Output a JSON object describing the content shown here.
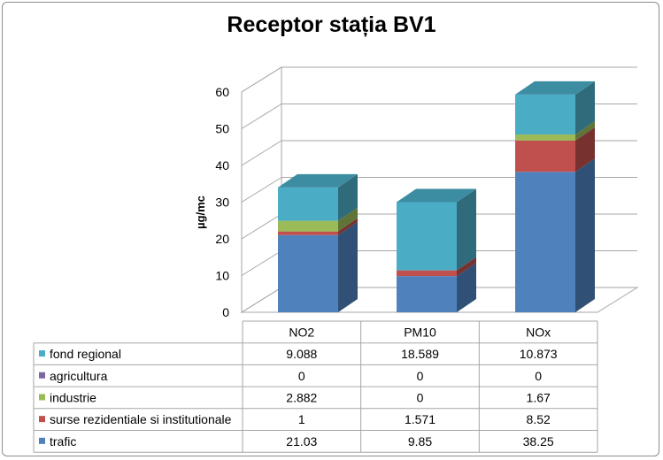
{
  "chart_data": {
    "type": "bar",
    "stacked": true,
    "three_d": true,
    "title": "Receptor stația BV1",
    "xlabel": "",
    "ylabel": "µg/mc",
    "ylim": [
      0,
      60
    ],
    "yticks": [
      "0",
      "10",
      "20",
      "30",
      "40",
      "50",
      "60"
    ],
    "grid": true,
    "legend": "data-table-left",
    "categories": [
      "NO2",
      "PM10",
      "NOx"
    ],
    "series": [
      {
        "name": "trafic",
        "values": [
          21.03,
          9.85,
          38.25
        ],
        "labels": [
          "21.03",
          "9.85",
          "38.25"
        ],
        "color": "#4f81bd"
      },
      {
        "name": "surse rezidentiale si institutionale",
        "values": [
          1,
          1.571,
          8.52
        ],
        "labels": [
          "1",
          "1.571",
          "8.52"
        ],
        "color": "#c0504d"
      },
      {
        "name": "industrie",
        "values": [
          2.882,
          0,
          1.67
        ],
        "labels": [
          "2.882",
          "0",
          "1.67"
        ],
        "color": "#9bbb59"
      },
      {
        "name": "agricultura",
        "values": [
          0,
          0,
          0
        ],
        "labels": [
          "0",
          "0",
          "0"
        ],
        "color": "#8064a2"
      },
      {
        "name": "fond regional",
        "values": [
          9.088,
          18.589,
          10.873
        ],
        "labels": [
          "9.088",
          "18.589",
          "10.873"
        ],
        "color": "#4bacc6"
      }
    ],
    "table_rows_order": [
      "fond regional",
      "agricultura",
      "industrie",
      "surse rezidentiale si institutionale",
      "trafic"
    ]
  }
}
